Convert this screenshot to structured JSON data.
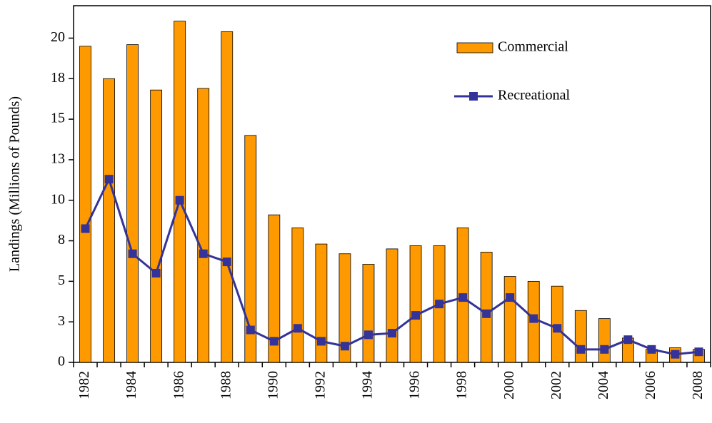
{
  "chart_data": {
    "type": "bar",
    "y_label": "Landings (Millions of Pounds)",
    "categories": [
      "1982",
      null,
      "1984",
      null,
      "1986",
      null,
      "1988",
      null,
      "1990",
      null,
      "1992",
      null,
      "1994",
      null,
      "1996",
      null,
      "1998",
      null,
      "2000",
      null,
      "2002",
      null,
      "2004",
      null,
      "2006",
      null,
      "2008"
    ],
    "series": [
      {
        "name": "Commercial",
        "type": "bar",
        "color": "#ff9900",
        "values": [
          19.5,
          17.5,
          19.6,
          16.8,
          21.05,
          16.9,
          20.4,
          14.0,
          9.1,
          8.3,
          7.3,
          6.7,
          6.05,
          7.0,
          7.2,
          7.2,
          8.3,
          6.8,
          5.3,
          5.0,
          4.7,
          3.2,
          2.7,
          1.5,
          0.8,
          0.9,
          0.8
        ]
      },
      {
        "name": "Recreational",
        "type": "line",
        "color": "#333399",
        "values": [
          8.25,
          11.3,
          6.7,
          5.5,
          10.0,
          6.7,
          6.2,
          2.0,
          1.3,
          2.1,
          1.3,
          1.0,
          1.7,
          1.8,
          2.9,
          3.6,
          4.0,
          3.0,
          4.0,
          2.7,
          2.1,
          0.8,
          0.8,
          1.4,
          0.8,
          0.5,
          0.65
        ]
      }
    ],
    "ylim": [
      0,
      22
    ],
    "yticks": [
      0,
      {
        "value": 2.5,
        "label": "3"
      },
      5,
      {
        "value": 7.5,
        "label": "8"
      },
      10,
      {
        "value": 12.5,
        "label": "13"
      },
      15,
      {
        "value": 17.5,
        "label": "18"
      },
      20
    ],
    "legend": "upper-right"
  }
}
